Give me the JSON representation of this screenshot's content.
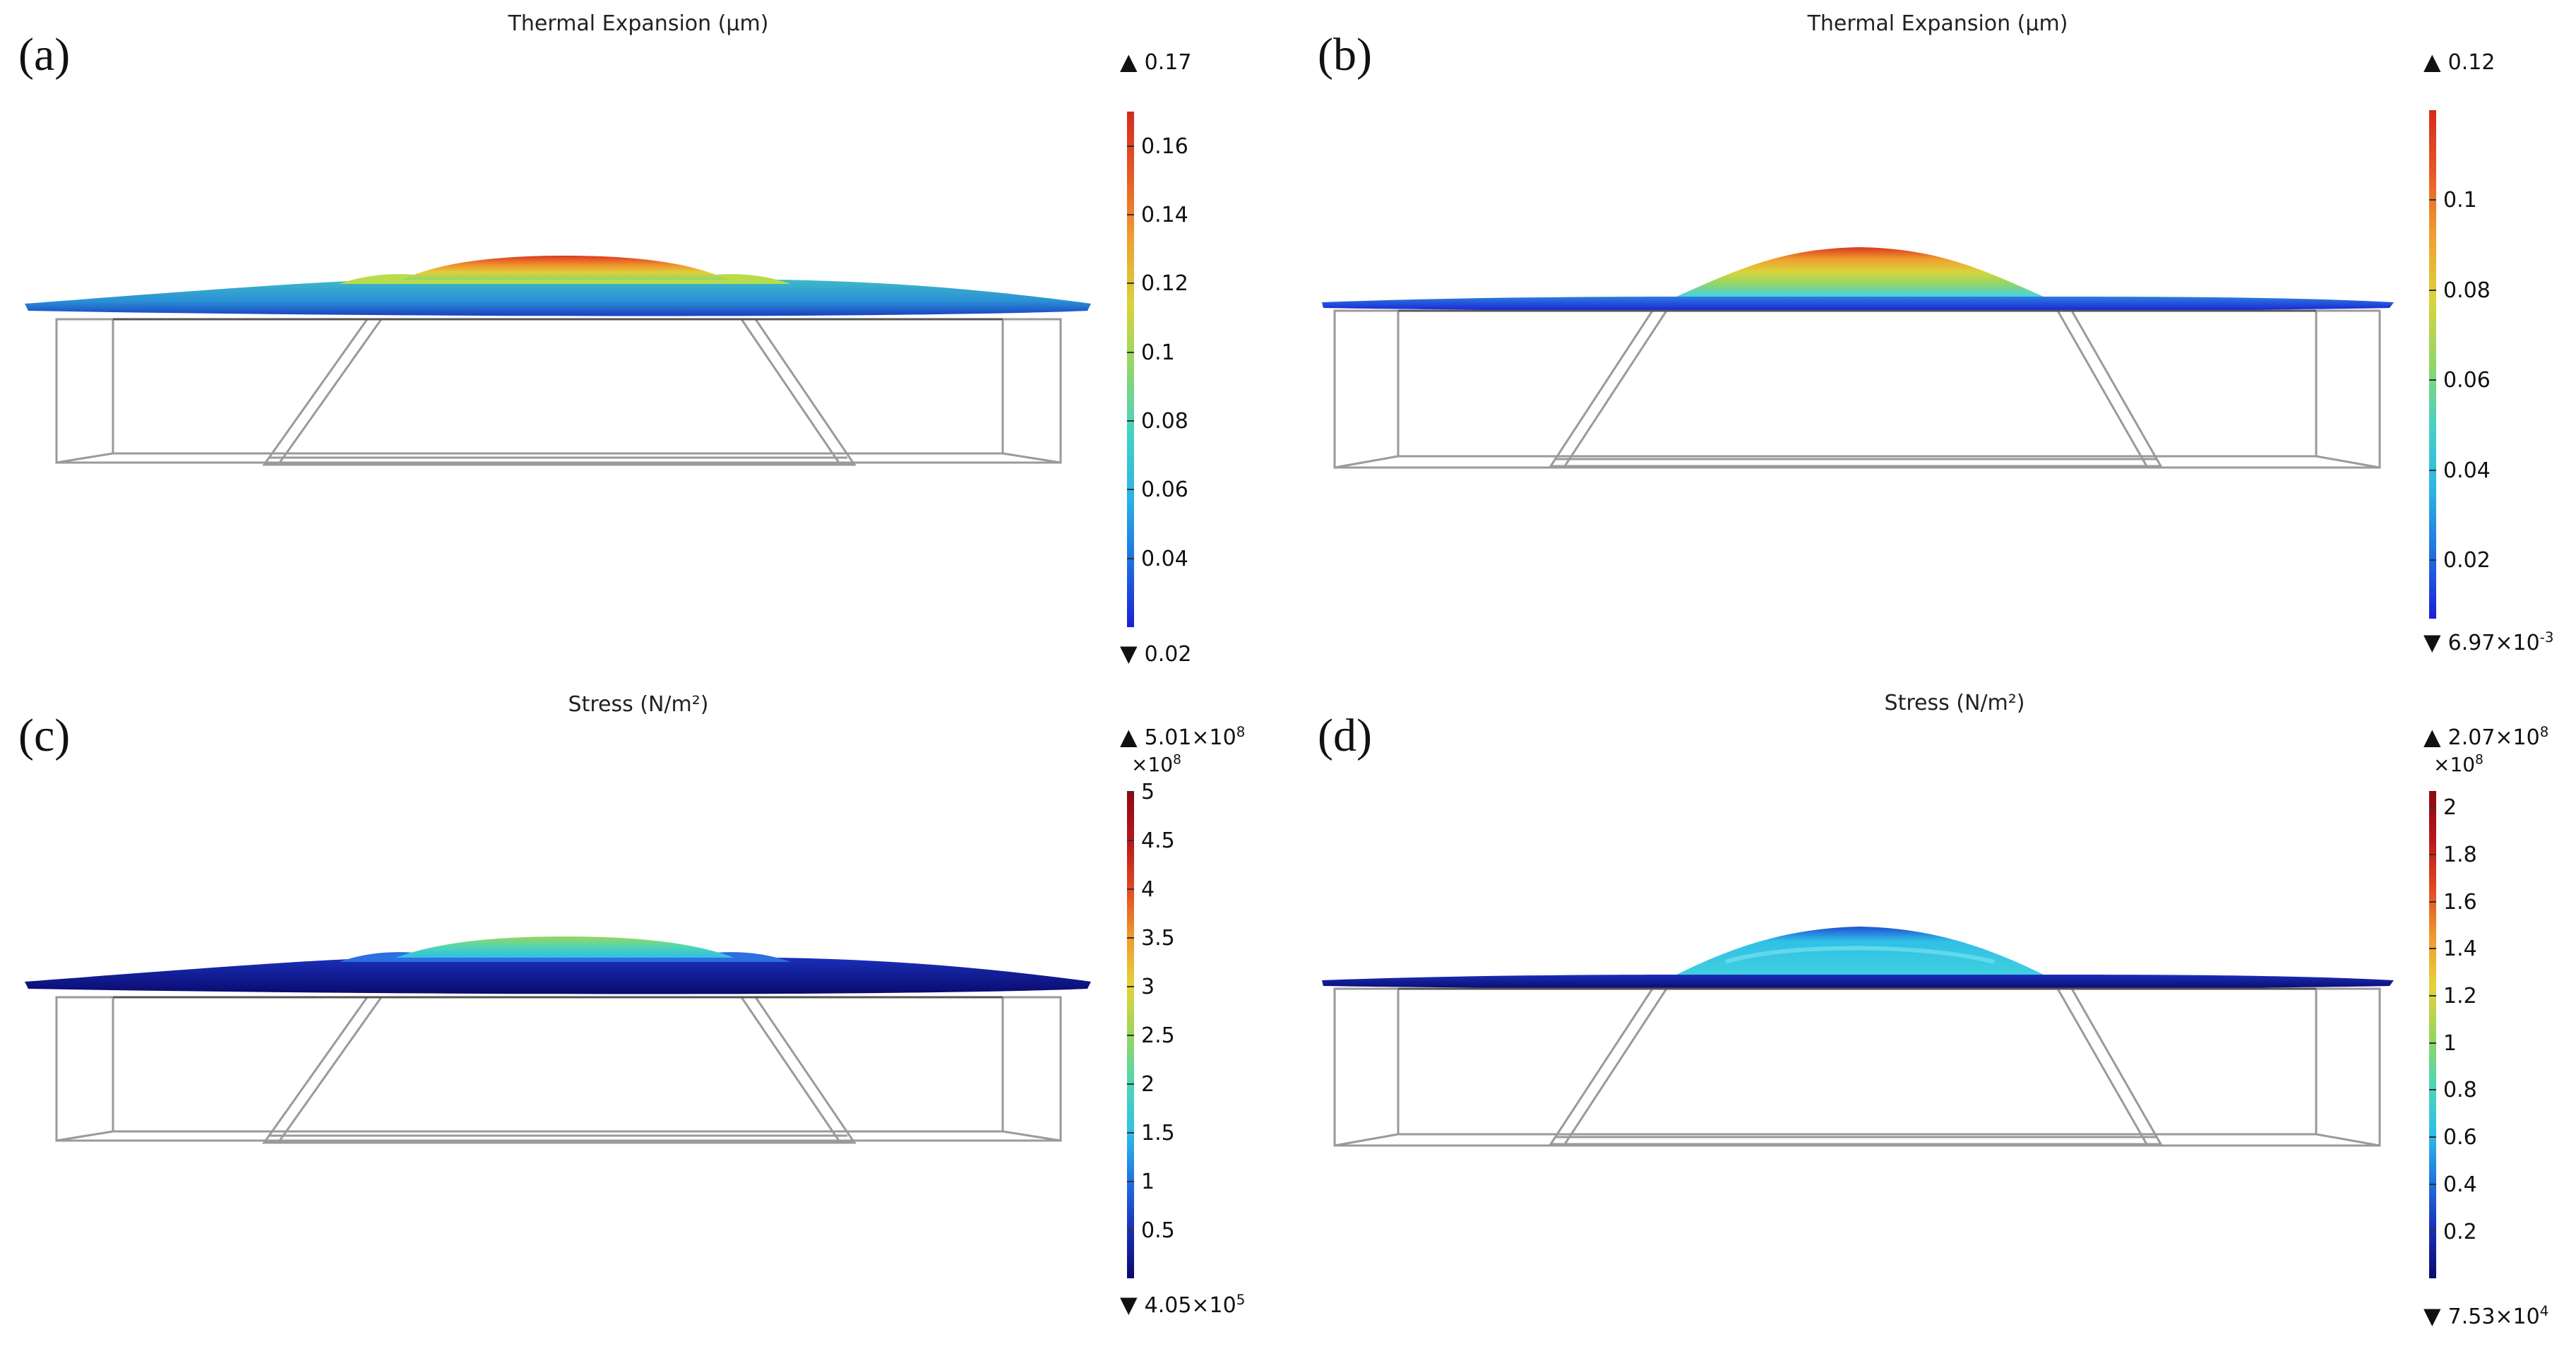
{
  "figure": {
    "panels": [
      {
        "id": "a",
        "letter": "(a)",
        "title": "Thermal Expansion (µm)",
        "colorbar": {
          "max_label": "0.17",
          "min_label": "0.02",
          "multiplier": "",
          "min": 0.02,
          "max": 0.17,
          "ticks": [
            "0.16",
            "0.14",
            "0.12",
            "0.1",
            "0.08",
            "0.06",
            "0.04"
          ],
          "tick_values": [
            0.16,
            0.14,
            0.12,
            0.1,
            0.08,
            0.06,
            0.04
          ],
          "palette": "rainbow"
        }
      },
      {
        "id": "b",
        "letter": "(b)",
        "title": "Thermal Expansion (µm)",
        "colorbar": {
          "max_label": "0.12",
          "min_label": "6.97×10",
          "min_label_exp": "-3",
          "multiplier": "",
          "min": 0.00697,
          "max": 0.12,
          "ticks": [
            "0.1",
            "0.08",
            "0.06",
            "0.04",
            "0.02"
          ],
          "tick_values": [
            0.1,
            0.08,
            0.06,
            0.04,
            0.02
          ],
          "palette": "rainbow"
        }
      },
      {
        "id": "c",
        "letter": "(c)",
        "title": "Stress (N/m²)",
        "colorbar": {
          "max_label": "5.01×10",
          "max_label_exp": "8",
          "min_label": "4.05×10",
          "min_label_exp": "5",
          "multiplier": "×10",
          "multiplier_exp": "8",
          "min": 0.00405,
          "max": 5.01,
          "ticks": [
            "5",
            "4.5",
            "4",
            "3.5",
            "3",
            "2.5",
            "2",
            "1.5",
            "1",
            "0.5"
          ],
          "tick_values": [
            5,
            4.5,
            4,
            3.5,
            3,
            2.5,
            2,
            1.5,
            1,
            0.5
          ],
          "palette": "rainbow-dark"
        }
      },
      {
        "id": "d",
        "letter": "(d)",
        "title": "Stress (N/m²)",
        "colorbar": {
          "max_label": "2.07×10",
          "max_label_exp": "8",
          "min_label": "7.53×10",
          "min_label_exp": "4",
          "multiplier": "×10",
          "multiplier_exp": "8",
          "min": 0.000753,
          "max": 2.07,
          "ticks": [
            "2",
            "1.8",
            "1.6",
            "1.4",
            "1.2",
            "1",
            "0.8",
            "0.6",
            "0.4",
            "0.2"
          ],
          "tick_values": [
            2,
            1.8,
            1.6,
            1.4,
            1.2,
            1,
            0.8,
            0.6,
            0.4,
            0.2
          ],
          "palette": "rainbow-dark"
        }
      }
    ]
  },
  "colors": {
    "rainbow": [
      "#1a1fd6",
      "#1f6fe0",
      "#2bb3e6",
      "#45d1c7",
      "#8fd66b",
      "#d9d43a",
      "#f0a030",
      "#e85a25",
      "#d42a1f"
    ],
    "rainbow-dark": [
      "#0a0a6e",
      "#1a2fb8",
      "#1f73e0",
      "#30bfe6",
      "#4fd6b3",
      "#9ad65e",
      "#e6d23a",
      "#f09a2e",
      "#de4a22",
      "#b8161b",
      "#8a0a10"
    ],
    "wireframe": "#9a9a9a",
    "text": "#111111"
  }
}
